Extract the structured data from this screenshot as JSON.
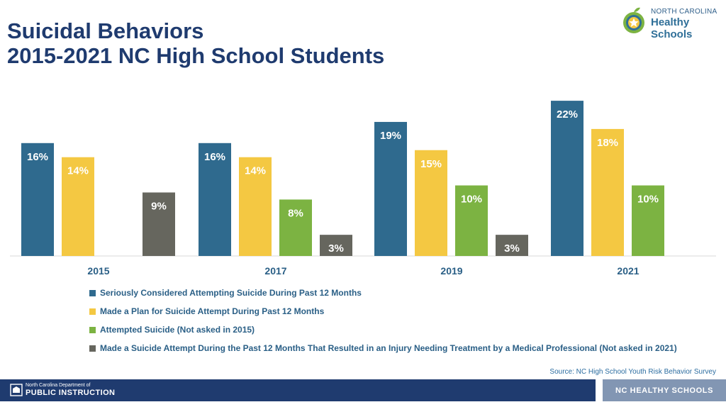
{
  "header": {
    "title_line1": "Suicidal Behaviors",
    "title_line2": "2015-2021 NC High School Students"
  },
  "logo": {
    "line1": "NORTH CAROLINA",
    "line2": "Healthy Schools",
    "icon": "apple-star-icon"
  },
  "chart_data": {
    "type": "bar",
    "categories": [
      "2015",
      "2017",
      "2019",
      "2021"
    ],
    "series": [
      {
        "name": "Seriously Considered Attempting Suicide During Past 12 Months",
        "color": "#2f6a8e",
        "values": [
          16,
          16,
          19,
          22
        ]
      },
      {
        "name": "Made a Plan for Suicide Attempt During Past 12 Months",
        "color": "#f4c842",
        "values": [
          14,
          14,
          15,
          18
        ]
      },
      {
        "name": "Attempted Suicide (Not asked in 2015)",
        "color": "#7cb342",
        "values": [
          null,
          8,
          10,
          10
        ]
      },
      {
        "name": "Made a Suicide Attempt During the Past 12 Months That Resulted in an Injury Needing Treatment by a Medical Professional (Not asked in 2021)",
        "color": "#66665e",
        "values": [
          9,
          3,
          3,
          null
        ]
      }
    ],
    "value_suffix": "%",
    "ylim": [
      0,
      24
    ],
    "grid": false,
    "legend_position": "bottom-left"
  },
  "source": "Source: NC High School Youth Risk Behavior Survey",
  "footer": {
    "dpi_line1": "North Carolina Department of",
    "dpi_line2": "PUBLIC INSTRUCTION",
    "right_label": "NC HEALTHY SCHOOLS"
  }
}
